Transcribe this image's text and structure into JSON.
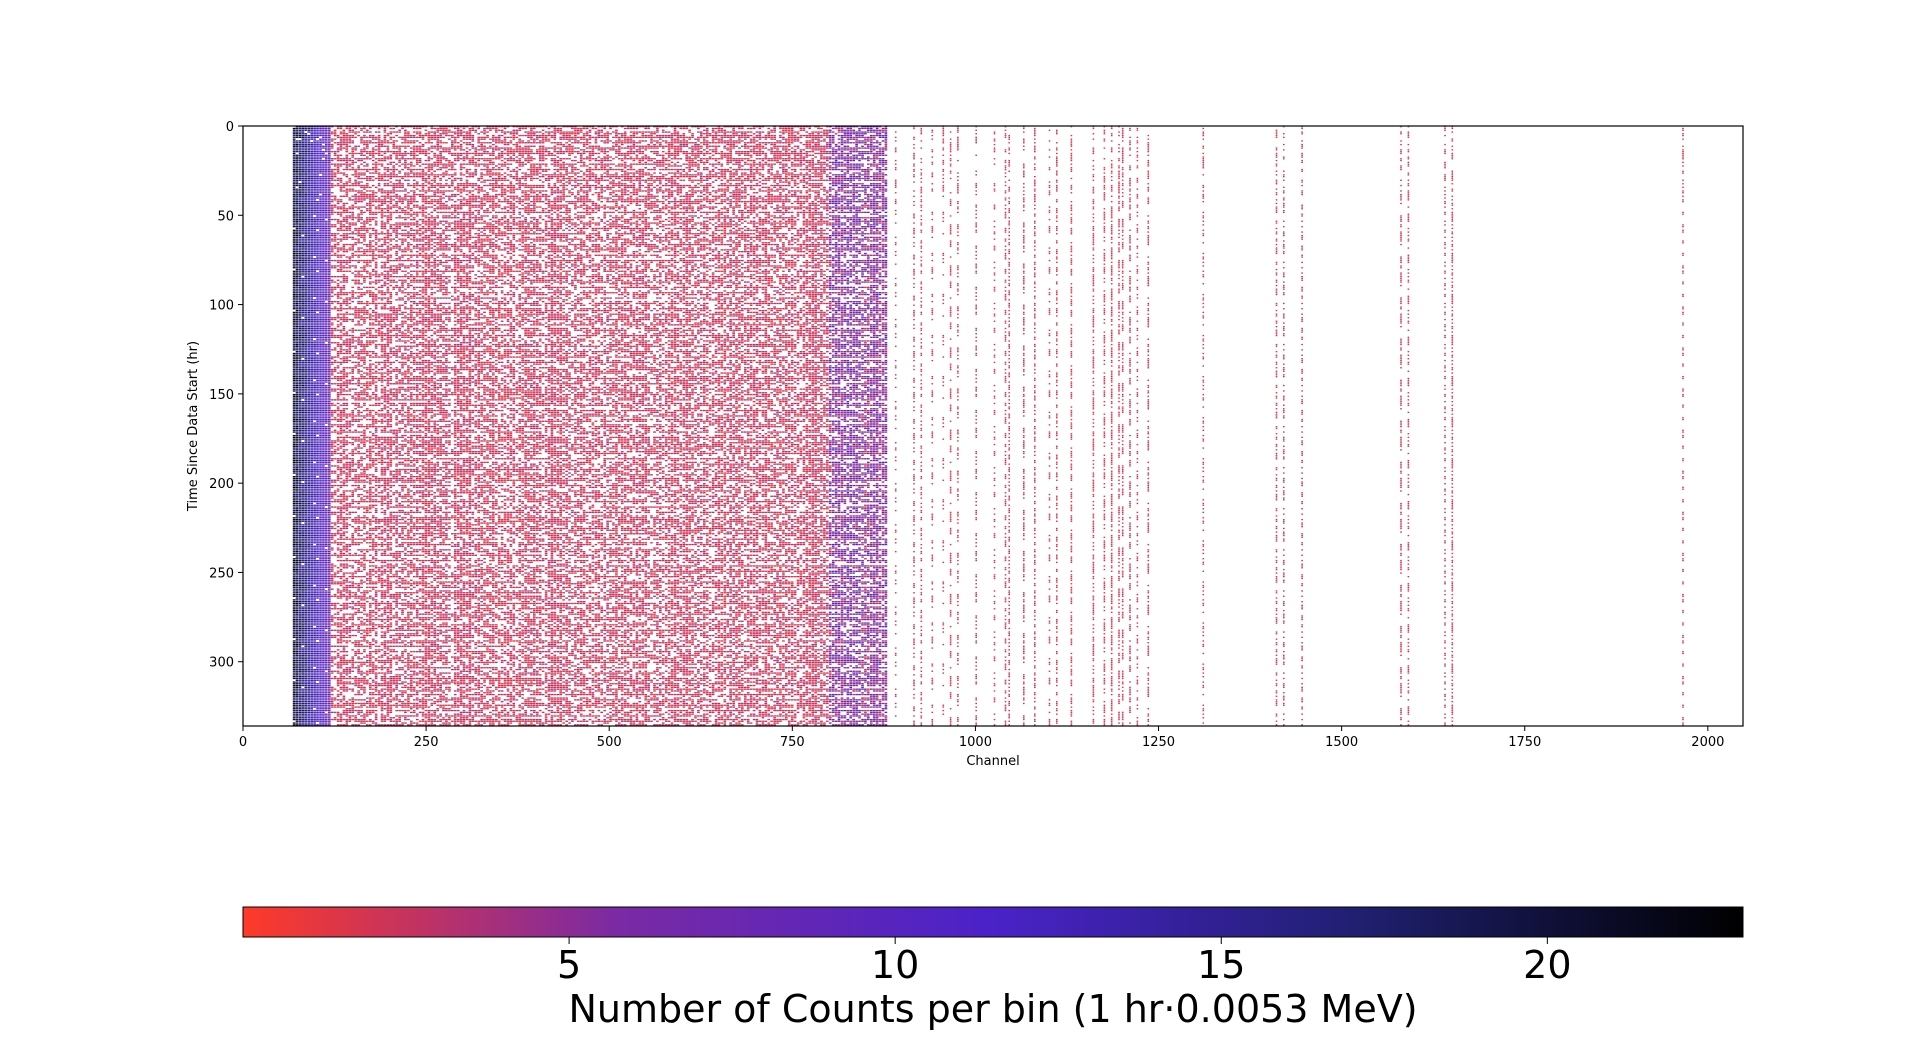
{
  "chart_data": {
    "type": "heatmap",
    "title": "",
    "xlabel": "Channel",
    "ylabel": "Time Since Data Start (hr)",
    "xlim": [
      0,
      2048
    ],
    "ylim": [
      336,
      0
    ],
    "x_ticks": [
      0,
      250,
      500,
      750,
      1000,
      1250,
      1500,
      1750,
      2000
    ],
    "y_ticks": [
      0,
      50,
      100,
      150,
      200,
      250,
      300
    ],
    "x_tick_labels": [
      "0",
      "250",
      "500",
      "750",
      "1000",
      "1250",
      "1500",
      "1750",
      "2000"
    ],
    "y_tick_labels": [
      "0",
      "50",
      "100",
      "150",
      "200",
      "250",
      "300"
    ],
    "grid": false,
    "dense_region": {
      "channel_range": [
        68,
        880
      ],
      "high_count_channels": [
        68,
        120
      ],
      "blue_band_channels": [
        800,
        880
      ]
    },
    "sparse_peak_channels": [
      890,
      915,
      925,
      940,
      955,
      965,
      975,
      1000,
      1025,
      1040,
      1045,
      1065,
      1080,
      1100,
      1110,
      1130,
      1160,
      1175,
      1185,
      1195,
      1200,
      1210,
      1220,
      1235,
      1310,
      1410,
      1420,
      1445,
      1580,
      1590,
      1640,
      1650,
      1965
    ],
    "colorbar": {
      "label": "Number of Counts per bin (1 hr·0.0053 MeV)",
      "range": [
        0,
        23
      ],
      "ticks": [
        5,
        10,
        15,
        20
      ],
      "tick_labels": [
        "5",
        "10",
        "15",
        "20"
      ],
      "colors": [
        "#ff3a28",
        "#7a2aa4",
        "#4a22c8",
        "#1f1f6e",
        "#000000"
      ],
      "orientation": "horizontal",
      "placement": "bottom"
    }
  }
}
